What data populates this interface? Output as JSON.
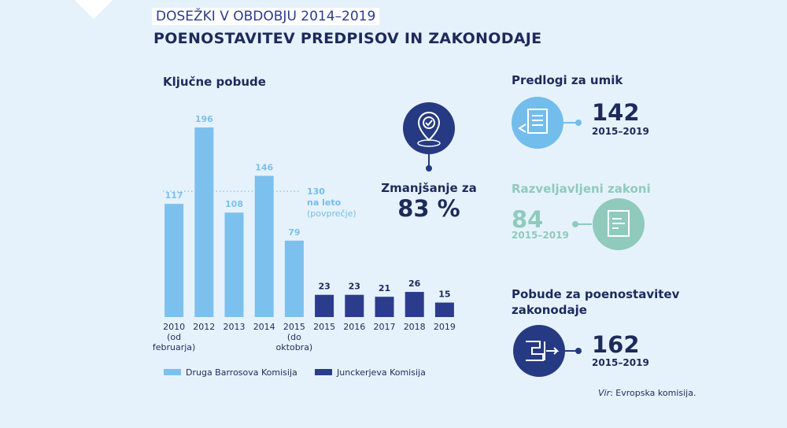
{
  "header": {
    "kicker": "DOSEŽKI V OBDOBJU 2014–2019",
    "title": "POENOSTAVITEV PREDPISOV IN ZAKONODAJE"
  },
  "chart_data": {
    "type": "bar",
    "title": "Ključne pobude",
    "categories": [
      "2010\n(od\nfebruarja)",
      "2012",
      "2013",
      "2014",
      "2015\n(do\noktobra)",
      "2015",
      "2016",
      "2017",
      "2018",
      "2019"
    ],
    "series": [
      {
        "name": "Druga Barrosova Komisija",
        "color": "#7cc0ee",
        "values": [
          117,
          196,
          108,
          146,
          79,
          null,
          null,
          null,
          null,
          null
        ]
      },
      {
        "name": "Junckerjeva Komisija",
        "color": "#2b3c8c",
        "values": [
          null,
          null,
          null,
          null,
          null,
          23,
          23,
          21,
          26,
          15
        ]
      }
    ],
    "reference_line": {
      "value": 130,
      "label": "na leto",
      "note": "(povprečje)"
    },
    "reduction": {
      "label": "Zmanjšanje za",
      "value": "83 %"
    }
  },
  "stats": [
    {
      "title": "Predlogi za umik",
      "value": 142,
      "period": "2015–2019"
    },
    {
      "title": "Razveljavljeni zakoni",
      "value": 84,
      "period": "2015–2019"
    },
    {
      "title": "Pobude za poenostavitev zakonodaje",
      "value": 162,
      "period": "2015–2019"
    }
  ],
  "source": {
    "prefix": "Vir",
    "text": ": Evropska komisija."
  }
}
